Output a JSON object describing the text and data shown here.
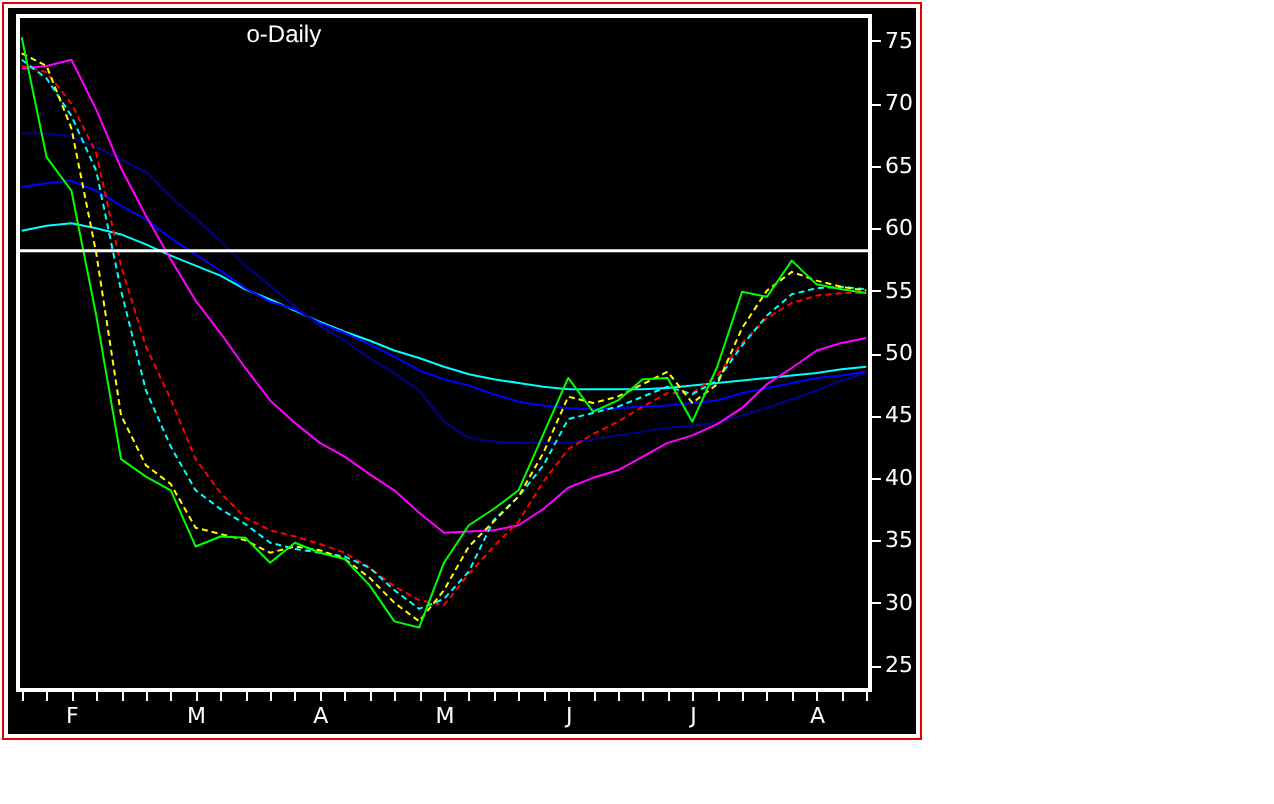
{
  "chart_data": {
    "type": "line",
    "subtitle": "o-Daily",
    "categories": [
      null,
      null,
      "F",
      null,
      null,
      null,
      null,
      "M",
      null,
      null,
      null,
      null,
      "A",
      null,
      null,
      null,
      null,
      "M",
      null,
      null,
      null,
      null,
      "J",
      null,
      null,
      null,
      null,
      "J",
      null,
      null,
      null,
      null,
      "A",
      null,
      null
    ],
    "ylim": [
      23,
      77
    ],
    "yticks": [
      25,
      30,
      35,
      40,
      45,
      50,
      55,
      60,
      65,
      70,
      75
    ],
    "series": [
      {
        "color": "#00ffff",
        "values": [
          59.8,
          60.2,
          60.4,
          60,
          59.5,
          58.7,
          57.8,
          57,
          56.2,
          55.1,
          54.3,
          53.4,
          52.5,
          51.7,
          51,
          50.2,
          49.6,
          48.9,
          48.3,
          47.9,
          47.6,
          47.3,
          47.1,
          47.1,
          47.1,
          47.1,
          47.2,
          47.4,
          47.6,
          47.8,
          48,
          48.2,
          48.4,
          48.7,
          48.9
        ]
      },
      {
        "color": "#0000ff",
        "values": [
          63.3,
          63.6,
          63.8,
          63,
          61.8,
          60.7,
          59.2,
          57.9,
          56.6,
          55.2,
          54.1,
          53.5,
          52.4,
          51.6,
          50.7,
          49.7,
          48.6,
          47.9,
          47.4,
          46.7,
          46.1,
          45.8,
          45.6,
          45.5,
          45.6,
          45.7,
          45.8,
          46,
          46.2,
          46.8,
          47.2,
          47.6,
          48,
          48.2,
          48.5
        ]
      },
      {
        "color": "#000090",
        "values": [
          67.6,
          67.6,
          67.3,
          66.5,
          65.5,
          64.5,
          62.5,
          60.8,
          59,
          57,
          55.4,
          53.7,
          52.2,
          51,
          49.6,
          48.4,
          47,
          44.5,
          43.2,
          42.9,
          42.8,
          42.8,
          42.8,
          43.1,
          43.4,
          43.7,
          44,
          44.2,
          44.4,
          45,
          45.6,
          46.3,
          47,
          47.8,
          48.4
        ]
      },
      {
        "color": "#ff00ff",
        "values": [
          72.8,
          73,
          73.5,
          69.5,
          64.8,
          61,
          57.5,
          54.2,
          51.6,
          48.8,
          46.2,
          44.4,
          42.8,
          41.7,
          40.3,
          39,
          37.2,
          35.6,
          35.7,
          35.8,
          36.2,
          37.5,
          39.2,
          40,
          40.6,
          41.7,
          42.8,
          43.4,
          44.3,
          45.6,
          47.5,
          48.8,
          50.2,
          50.8,
          51.2
        ]
      },
      {
        "color": "#ff0000",
        "line_style": "dashed",
        "values": [
          73,
          72.5,
          70,
          66,
          57,
          50.5,
          46.3,
          41.5,
          38.8,
          36.8,
          35.8,
          35.3,
          34.7,
          34,
          32.8,
          31.3,
          30.2,
          29.8,
          32.3,
          34.5,
          36.5,
          39.7,
          42.3,
          43.5,
          44.5,
          45.7,
          46.8,
          46.8,
          48.2,
          50.8,
          52.8,
          54,
          54.6,
          54.8,
          54.8
        ]
      },
      {
        "color": "#00ffff",
        "line_style": "dashed",
        "values": [
          73.5,
          72,
          69,
          64.6,
          55,
          47,
          42.5,
          39,
          37.5,
          36.3,
          34.8,
          34.3,
          34,
          33.7,
          32.8,
          31,
          29.5,
          30.3,
          32.5,
          36.6,
          38.5,
          41,
          44.7,
          45.2,
          45.7,
          46.5,
          47.3,
          46.7,
          47.8,
          50.6,
          53,
          54.7,
          55.2,
          55.3,
          55.1
        ]
      },
      {
        "color": "#ffff00",
        "line_style": "dashed",
        "values": [
          74,
          73,
          68,
          58,
          45,
          41,
          39.5,
          36,
          35.5,
          35,
          34,
          34.5,
          34.2,
          33.5,
          32,
          30,
          28.5,
          31,
          34.5,
          36.5,
          38.5,
          42,
          46.5,
          46,
          46.5,
          47.5,
          48.5,
          46,
          47.5,
          52,
          55,
          56.5,
          55.8,
          55.3,
          55
        ]
      },
      {
        "color": "#00ff00",
        "values": [
          75.3,
          65.7,
          63,
          53,
          41.5,
          40.1,
          39,
          34.5,
          35.3,
          35.2,
          33.2,
          34.8,
          34,
          33.5,
          31.4,
          28.5,
          28,
          33.2,
          36.2,
          37.5,
          39,
          43.5,
          48,
          45.3,
          46.2,
          47.9,
          48,
          44.5,
          48.9,
          54.9,
          54.5,
          57.4,
          55.5,
          55.1,
          54.8
        ]
      }
    ],
    "ref_lines": [
      {
        "axis": "y",
        "value": 58.2,
        "color": "#ffffff"
      }
    ]
  }
}
